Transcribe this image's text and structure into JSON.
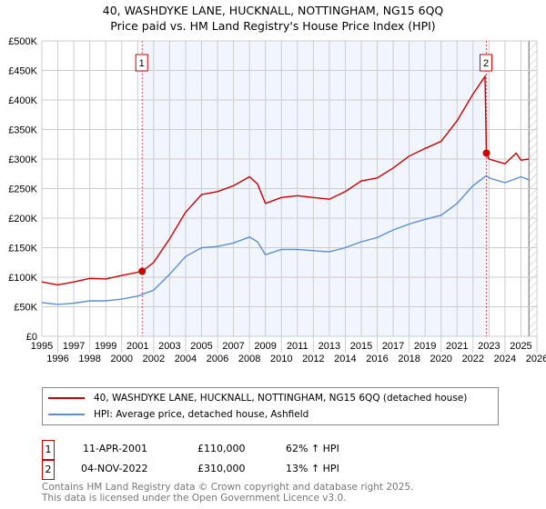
{
  "title": "40, WASHDYKE LANE, HUCKNALL, NOTTINGHAM, NG15 6QQ",
  "subtitle": "Price paid vs. HM Land Registry's House Price Index (HPI)",
  "chart_data": {
    "type": "line",
    "ylim": [
      0,
      500000
    ],
    "xlim": [
      1995,
      2026
    ],
    "yticks": [
      {
        "v": 0,
        "l": "£0"
      },
      {
        "v": 50000,
        "l": "£50K"
      },
      {
        "v": 100000,
        "l": "£100K"
      },
      {
        "v": 150000,
        "l": "£150K"
      },
      {
        "v": 200000,
        "l": "£200K"
      },
      {
        "v": 250000,
        "l": "£250K"
      },
      {
        "v": 300000,
        "l": "£300K"
      },
      {
        "v": 350000,
        "l": "£350K"
      },
      {
        "v": 400000,
        "l": "£400K"
      },
      {
        "v": 450000,
        "l": "£450K"
      },
      {
        "v": 500000,
        "l": "£500K"
      }
    ],
    "xticks": [
      "1995",
      "1996",
      "1997",
      "1998",
      "1999",
      "2000",
      "2001",
      "2002",
      "2003",
      "2004",
      "2005",
      "2006",
      "2007",
      "2008",
      "2009",
      "2010",
      "2011",
      "2012",
      "2013",
      "2014",
      "2015",
      "2016",
      "2017",
      "2018",
      "2019",
      "2020",
      "2021",
      "2022",
      "2023",
      "2024",
      "2025",
      "2026"
    ],
    "series": [
      {
        "name": "40, WASHDYKE LANE, HUCKNALL, NOTTINGHAM, NG15 6QQ (detached house)",
        "color": "#cc0000",
        "x": [
          1995,
          1996,
          1997,
          1998,
          1999,
          2000,
          2001.28,
          2002,
          2003,
          2004,
          2005,
          2006,
          2007,
          2008,
          2008.5,
          2009,
          2010,
          2011,
          2012,
          2013,
          2014,
          2015,
          2016,
          2017,
          2018,
          2019,
          2020,
          2021,
          2022,
          2022.75,
          2022.84,
          2023,
          2024,
          2024.7,
          2025,
          2025.5
        ],
        "y": [
          92000,
          87000,
          92000,
          98000,
          97000,
          103000,
          110000,
          125000,
          165000,
          210000,
          240000,
          245000,
          255000,
          270000,
          258000,
          225000,
          235000,
          238000,
          235000,
          232000,
          245000,
          263000,
          268000,
          285000,
          305000,
          318000,
          330000,
          365000,
          410000,
          440000,
          310000,
          300000,
          292000,
          310000,
          298000,
          300000
        ]
      },
      {
        "name": "HPI: Average price, detached house, Ashfield",
        "color": "#5b8fd4",
        "x": [
          1995,
          1996,
          1997,
          1998,
          1999,
          2000,
          2001,
          2002,
          2003,
          2004,
          2005,
          2006,
          2007,
          2008,
          2008.5,
          2009,
          2010,
          2011,
          2012,
          2013,
          2014,
          2015,
          2016,
          2017,
          2018,
          2019,
          2020,
          2021,
          2022,
          2022.84,
          2023,
          2024,
          2025,
          2025.5
        ],
        "y": [
          57000,
          54000,
          56000,
          60000,
          60000,
          63000,
          68000,
          78000,
          105000,
          135000,
          150000,
          152000,
          158000,
          168000,
          160000,
          138000,
          147000,
          147000,
          145000,
          143000,
          150000,
          160000,
          167000,
          180000,
          190000,
          198000,
          205000,
          225000,
          255000,
          272000,
          268000,
          260000,
          270000,
          265000
        ]
      }
    ],
    "sales": [
      {
        "n": "1",
        "x": 2001.28,
        "y": 110000
      },
      {
        "n": "2",
        "x": 2022.84,
        "y": 310000
      }
    ]
  },
  "legend": [
    "40, WASHDYKE LANE, HUCKNALL, NOTTINGHAM, NG15 6QQ (detached house)",
    "HPI: Average price, detached house, Ashfield"
  ],
  "table": [
    {
      "n": "1",
      "date": "11-APR-2001",
      "price": "£110,000",
      "hpi": "62% ↑ HPI"
    },
    {
      "n": "2",
      "date": "04-NOV-2022",
      "price": "£310,000",
      "hpi": "13% ↑ HPI"
    }
  ],
  "footer": [
    "Contains HM Land Registry data © Crown copyright and database right 2025.",
    "This data is licensed under the Open Government Licence v3.0."
  ]
}
